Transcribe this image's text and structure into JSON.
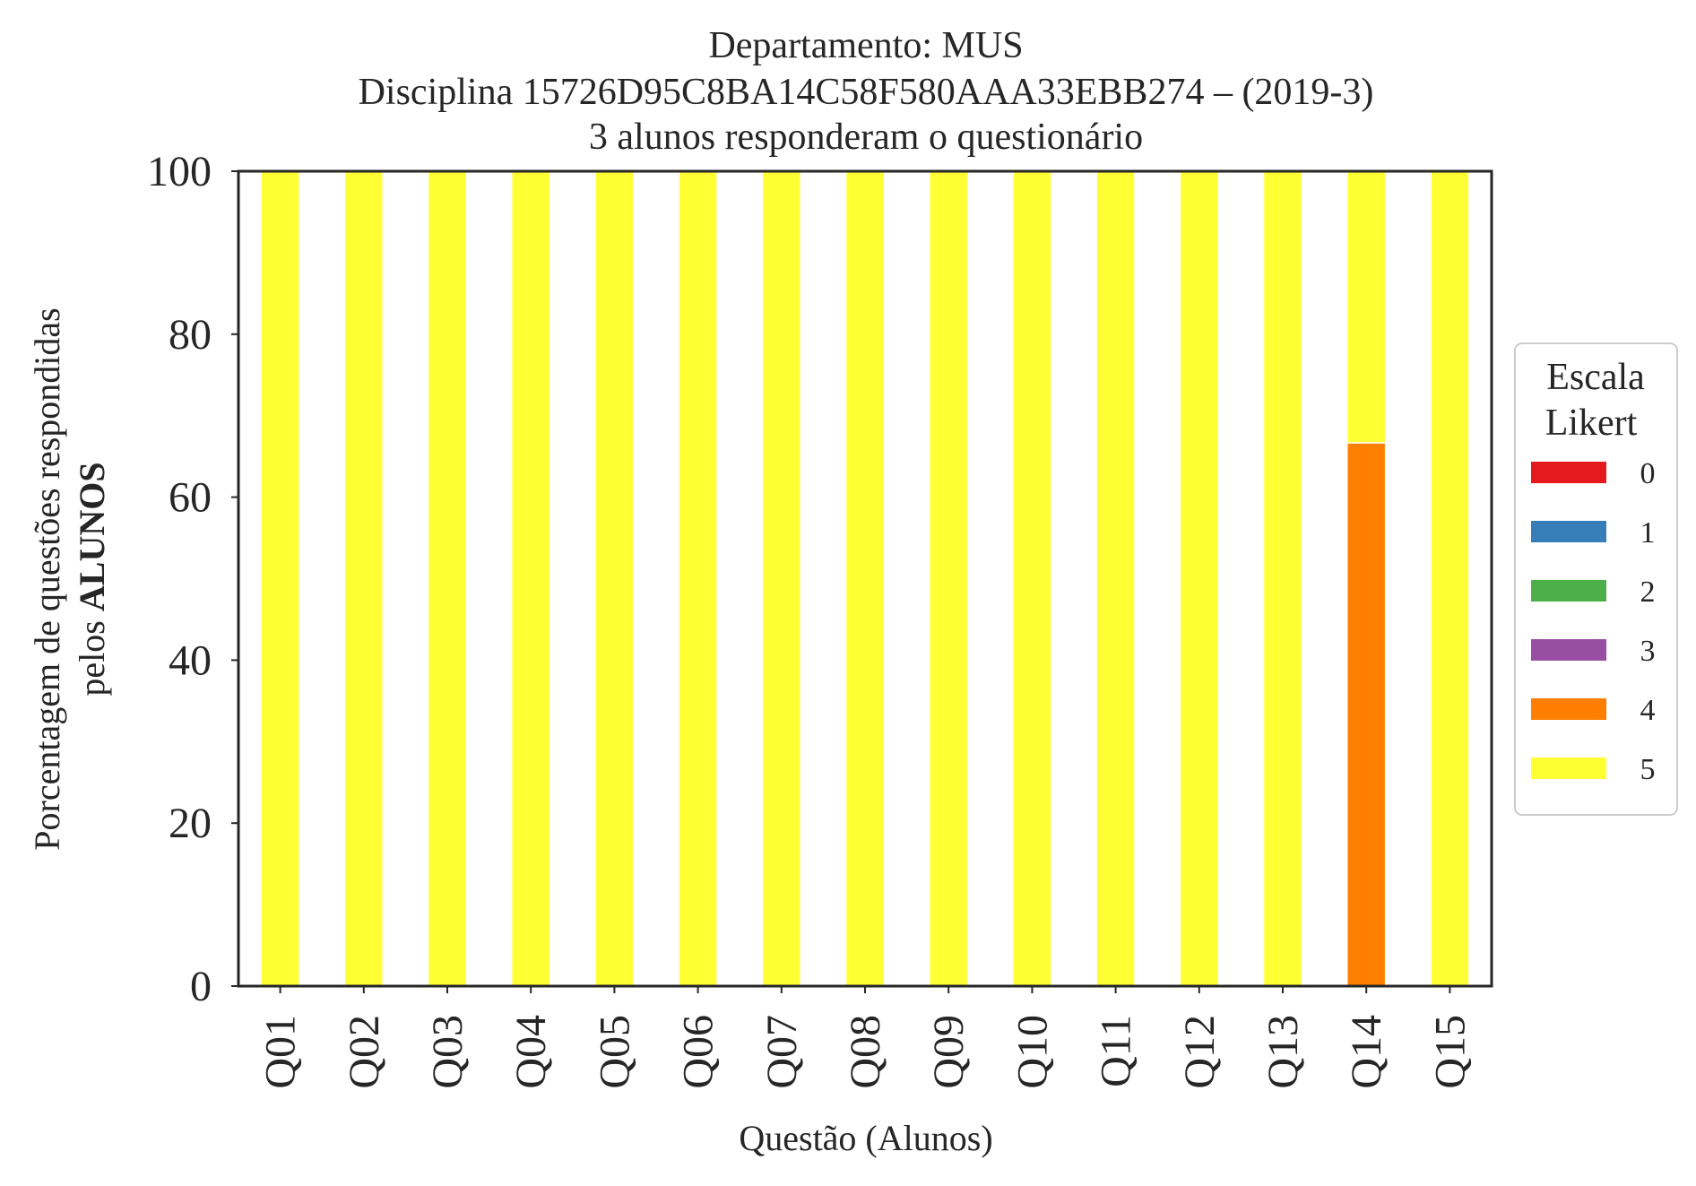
{
  "chart_data": {
    "type": "bar",
    "stacked": true,
    "title": [
      "Departamento: MUS",
      "Disciplina 15726D95C8BA14C58F580AAA33EBB274 – (2019-3)",
      "3 alunos responderam o questionário"
    ],
    "xlabel": "Questão (Alunos)",
    "ylabel": {
      "line1": "Porcentagem de questões respondidas",
      "line2_prefix": "pelos ",
      "line2_bold": "ALUNOS"
    },
    "ylim": [
      0,
      100
    ],
    "yticks": [
      "0",
      "20",
      "40",
      "60",
      "80",
      "100"
    ],
    "categories": [
      "Q01",
      "Q02",
      "Q03",
      "Q04",
      "Q05",
      "Q06",
      "Q07",
      "Q08",
      "Q09",
      "Q10",
      "Q11",
      "Q12",
      "Q13",
      "Q14",
      "Q15"
    ],
    "series": [
      {
        "name": "0",
        "color": "#e41a1c",
        "values": [
          0,
          0,
          0,
          0,
          0,
          0,
          0,
          0,
          0,
          0,
          0,
          0,
          0,
          0,
          0
        ]
      },
      {
        "name": "1",
        "color": "#377eb8",
        "values": [
          0,
          0,
          0,
          0,
          0,
          0,
          0,
          0,
          0,
          0,
          0,
          0,
          0,
          0,
          0
        ]
      },
      {
        "name": "2",
        "color": "#4daf4a",
        "values": [
          0,
          0,
          0,
          0,
          0,
          0,
          0,
          0,
          0,
          0,
          0,
          0,
          0,
          0,
          0
        ]
      },
      {
        "name": "3",
        "color": "#984ea3",
        "values": [
          0,
          0,
          0,
          0,
          0,
          0,
          0,
          0,
          0,
          0,
          0,
          0,
          0,
          0,
          0
        ]
      },
      {
        "name": "4",
        "color": "#ff7f00",
        "values": [
          0,
          0,
          0,
          0,
          0,
          0,
          0,
          0,
          0,
          0,
          0,
          0,
          0,
          66.67,
          0
        ]
      },
      {
        "name": "5",
        "color": "#ffff33",
        "values": [
          100,
          100,
          100,
          100,
          100,
          100,
          100,
          100,
          100,
          100,
          100,
          100,
          100,
          33.33,
          100
        ]
      }
    ],
    "legend": {
      "title": [
        "Escala",
        "Likert"
      ],
      "position": "right"
    },
    "grid": false
  }
}
